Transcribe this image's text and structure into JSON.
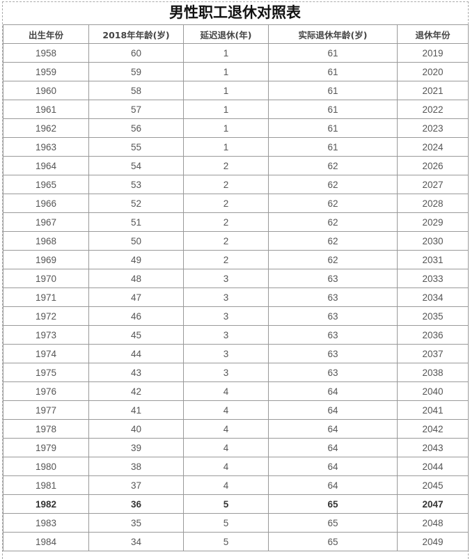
{
  "title": "男性职工退休对照表",
  "headers": [
    "出生年份",
    "2018年年龄(岁)",
    "延迟退休(年)",
    "实际退休年龄(岁)",
    "退休年份"
  ],
  "highlight_row": "1982",
  "rows": [
    [
      "1958",
      "60",
      "1",
      "61",
      "2019"
    ],
    [
      "1959",
      "59",
      "1",
      "61",
      "2020"
    ],
    [
      "1960",
      "58",
      "1",
      "61",
      "2021"
    ],
    [
      "1961",
      "57",
      "1",
      "61",
      "2022"
    ],
    [
      "1962",
      "56",
      "1",
      "61",
      "2023"
    ],
    [
      "1963",
      "55",
      "1",
      "61",
      "2024"
    ],
    [
      "1964",
      "54",
      "2",
      "62",
      "2026"
    ],
    [
      "1965",
      "53",
      "2",
      "62",
      "2027"
    ],
    [
      "1966",
      "52",
      "2",
      "62",
      "2028"
    ],
    [
      "1967",
      "51",
      "2",
      "62",
      "2029"
    ],
    [
      "1968",
      "50",
      "2",
      "62",
      "2030"
    ],
    [
      "1969",
      "49",
      "2",
      "62",
      "2031"
    ],
    [
      "1970",
      "48",
      "3",
      "63",
      "2033"
    ],
    [
      "1971",
      "47",
      "3",
      "63",
      "2034"
    ],
    [
      "1972",
      "46",
      "3",
      "63",
      "2035"
    ],
    [
      "1973",
      "45",
      "3",
      "63",
      "2036"
    ],
    [
      "1974",
      "44",
      "3",
      "63",
      "2037"
    ],
    [
      "1975",
      "43",
      "3",
      "63",
      "2038"
    ],
    [
      "1976",
      "42",
      "4",
      "64",
      "2040"
    ],
    [
      "1977",
      "41",
      "4",
      "64",
      "2041"
    ],
    [
      "1978",
      "40",
      "4",
      "64",
      "2042"
    ],
    [
      "1979",
      "39",
      "4",
      "64",
      "2043"
    ],
    [
      "1980",
      "38",
      "4",
      "64",
      "2044"
    ],
    [
      "1981",
      "37",
      "4",
      "64",
      "2045"
    ],
    [
      "1982",
      "36",
      "5",
      "65",
      "2047"
    ],
    [
      "1983",
      "35",
      "5",
      "65",
      "2048"
    ],
    [
      "1984",
      "34",
      "5",
      "65",
      "2049"
    ]
  ]
}
